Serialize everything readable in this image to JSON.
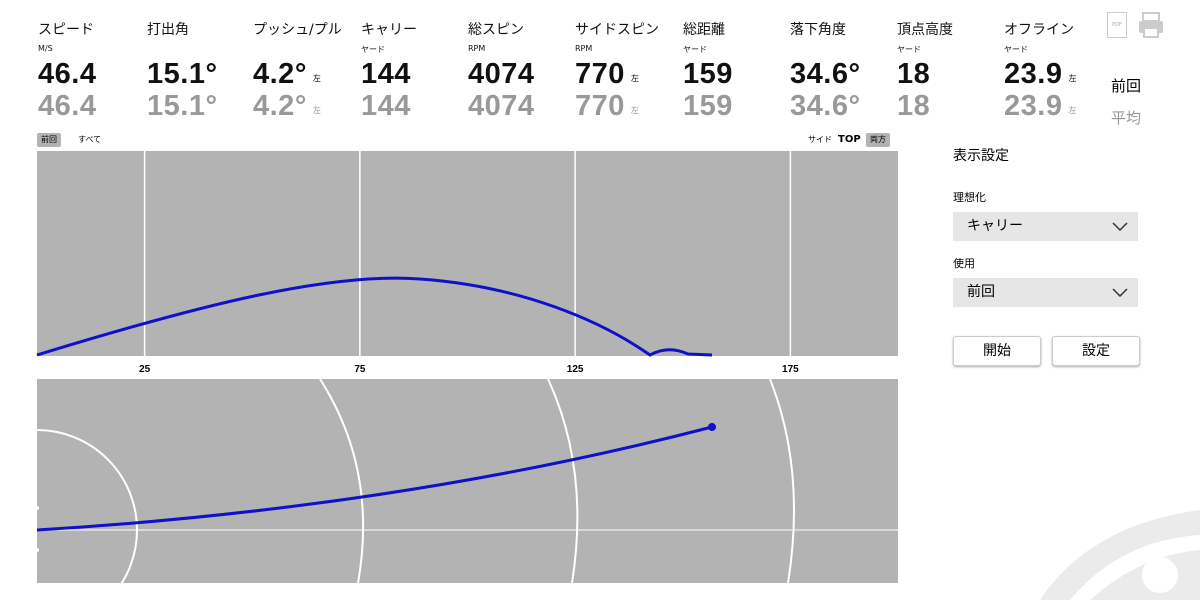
{
  "metrics": [
    {
      "label": "スピード",
      "unit": "M/S",
      "last": "46.4",
      "avg": "46.4"
    },
    {
      "label": "打出角",
      "last": "15.1°",
      "avg": "15.1°"
    },
    {
      "label": "プッシュ/プル",
      "last": "4.2°",
      "avg": "4.2°",
      "last_side": "左",
      "avg_side": "左"
    },
    {
      "label": "キャリー",
      "unit": "ヤード",
      "last": "144",
      "avg": "144"
    },
    {
      "label": "総スピン",
      "unit": "RPM",
      "last": "4074",
      "avg": "4074"
    },
    {
      "label": "サイドスピン",
      "unit": "RPM",
      "last": "770",
      "avg": "770",
      "last_side": "左",
      "avg_side": "左"
    },
    {
      "label": "総距離",
      "unit": "ヤード",
      "last": "159",
      "avg": "159"
    },
    {
      "label": "落下角度",
      "last": "34.6°",
      "avg": "34.6°"
    },
    {
      "label": "頂点高度",
      "unit": "ヤード",
      "last": "18",
      "avg": "18"
    },
    {
      "label": "オフライン",
      "unit": "ヤード",
      "last": "23.9",
      "avg": "23.9",
      "last_side": "左",
      "avg_side": "左"
    }
  ],
  "row_labels": {
    "last": "前回",
    "avg": "平均"
  },
  "icons": {
    "pdf": "PDF"
  },
  "view_toggle": {
    "left": [
      "前回",
      "すべて"
    ],
    "right": [
      "サイド",
      "TOP",
      "両方"
    ]
  },
  "side_view": {
    "xlim": [
      0,
      200
    ],
    "xticks": [
      25,
      75,
      125,
      175
    ]
  },
  "settings": {
    "title": "表示設定",
    "ideal_label": "理想化",
    "ideal_value": "キャリー",
    "use_label": "使用",
    "use_value": "前回",
    "buttons": [
      "開始",
      "設定"
    ]
  }
}
